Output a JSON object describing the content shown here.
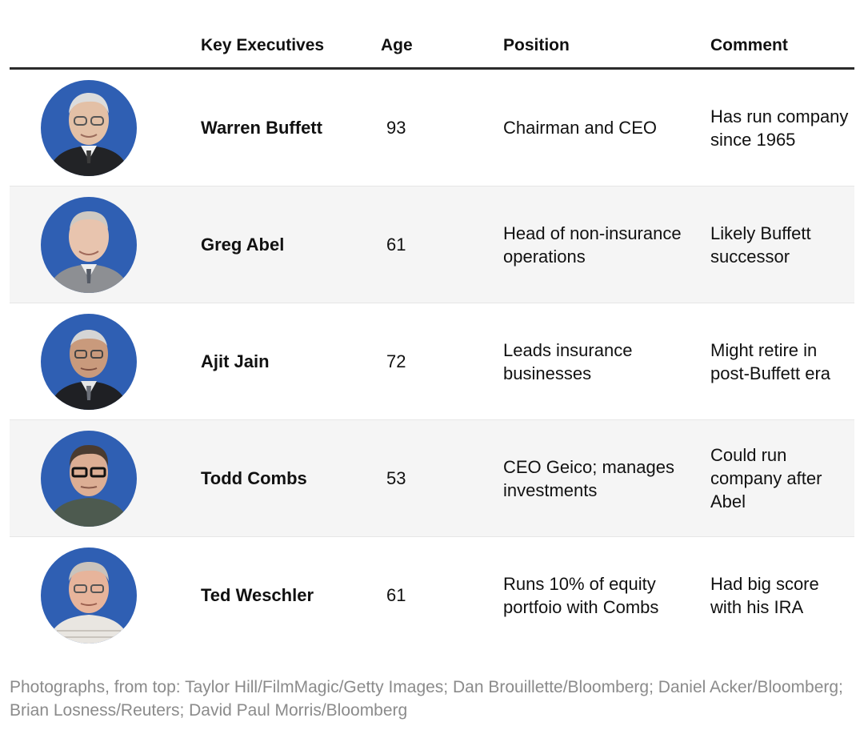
{
  "header": {
    "executives": "Key Executives",
    "age": "Age",
    "position": "Position",
    "comment": "Comment"
  },
  "rows": [
    {
      "name": "Warren Buffett",
      "age": "93",
      "position": "Chairman and CEO",
      "comment": "Has run company since 1965",
      "photo": "warren-buffett-portrait"
    },
    {
      "name": "Greg Abel",
      "age": "61",
      "position": "Head of non-insurance operations",
      "comment": "Likely Buffett successor",
      "photo": "greg-abel-portrait"
    },
    {
      "name": "Ajit Jain",
      "age": "72",
      "position": "Leads insurance businesses",
      "comment": "Might retire in post-Buffett era",
      "photo": "ajit-jain-portrait"
    },
    {
      "name": "Todd Combs",
      "age": "53",
      "position": "CEO Geico; manages investments",
      "comment": "Could run company after Abel",
      "photo": "todd-combs-portrait"
    },
    {
      "name": "Ted Weschler",
      "age": "61",
      "position": "Runs 10% of equity portfoio with Combs",
      "comment": "Had big score with his IRA",
      "photo": "ted-weschler-portrait"
    }
  ],
  "credit": "Photographs, from top: Taylor Hill/FilmMagic/Getty Images; Dan Brouillette/Bloomberg; Daniel Acker/Bloomberg; Brian Losness/Reuters; David Paul Morris/Bloomberg",
  "colors": {
    "photo_background": "#2f5fb3",
    "header_rule": "#2b2b2b",
    "alt_row": "#f5f5f5",
    "credit_text": "#8b8b8b"
  }
}
